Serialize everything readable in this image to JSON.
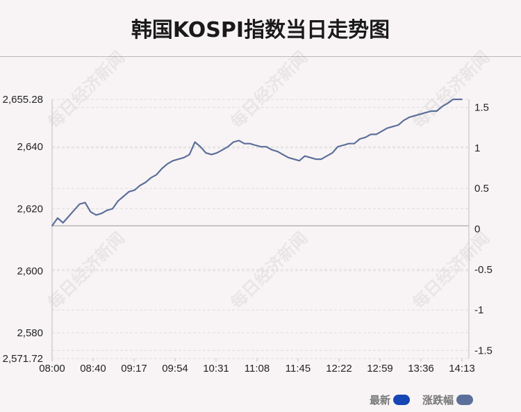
{
  "title": "韩国KOSPI指数当日走势图",
  "watermark": "每日经济新闻",
  "legend": {
    "latest_label": "最新",
    "latest_color": "#1646b4",
    "change_label": "涨跌幅",
    "change_color": "#5b6f9a"
  },
  "chart_data": {
    "type": "line",
    "x_tick_labels": [
      "08:00",
      "08:40",
      "09:17",
      "09:54",
      "10:31",
      "11:08",
      "11:45",
      "12:22",
      "12:59",
      "13:36",
      "14:13"
    ],
    "left_axis": {
      "ylim": [
        2571.72,
        2655.28
      ],
      "ticks": [
        2655.28,
        2640,
        2620,
        2600,
        2580,
        2571.72
      ],
      "tick_labels": [
        "2,655.28",
        "2,640",
        "2,620",
        "2,600",
        "2,580",
        "2,571.72"
      ]
    },
    "right_axis": {
      "ylim": [
        -1.6,
        1.6
      ],
      "ticks": [
        1.5,
        1,
        0.5,
        0,
        -0.5,
        -1,
        -1.5
      ],
      "tick_labels": [
        "1.5",
        "1",
        "0.5",
        "0",
        "-0.5",
        "-1",
        "-1.5"
      ]
    },
    "baseline": 2614.5,
    "line_color": "#5b6f9a",
    "series": [
      {
        "x": [
          "08:00",
          "08:05",
          "08:10",
          "08:15",
          "08:20",
          "08:25",
          "08:30",
          "08:35",
          "08:40",
          "08:45",
          "08:50",
          "08:55",
          "09:00",
          "09:05",
          "09:10",
          "09:15",
          "09:20",
          "09:25",
          "09:30",
          "09:35",
          "09:40",
          "09:45",
          "09:50",
          "09:55",
          "10:00",
          "10:05",
          "10:10",
          "10:15",
          "10:20",
          "10:25",
          "10:30",
          "10:35",
          "10:40",
          "10:45",
          "10:50",
          "10:55",
          "11:00",
          "11:05",
          "11:10",
          "11:15",
          "11:20",
          "11:25",
          "11:30",
          "11:35",
          "11:40",
          "11:45",
          "11:50",
          "11:55",
          "12:00",
          "12:05",
          "12:10",
          "12:15",
          "12:20",
          "12:25",
          "12:30",
          "12:35",
          "12:40",
          "12:45",
          "12:50",
          "12:55",
          "13:00",
          "13:05",
          "13:10",
          "13:15",
          "13:20",
          "13:25",
          "13:30",
          "13:35",
          "13:40",
          "13:45",
          "13:50",
          "13:55",
          "14:00",
          "14:05",
          "14:10",
          "14:13"
        ],
        "values": [
          2614.5,
          2617,
          2615.5,
          2617.5,
          2619.5,
          2621.5,
          2622,
          2619,
          2618,
          2618.5,
          2619.5,
          2620,
          2622.5,
          2624,
          2625.5,
          2626,
          2627.5,
          2628.5,
          2630,
          2631,
          2633,
          2634.5,
          2635.5,
          2636,
          2636.5,
          2637.5,
          2641.5,
          2640,
          2638,
          2637.5,
          2638,
          2639,
          2640,
          2641.5,
          2642,
          2641,
          2641,
          2640.5,
          2640,
          2640,
          2639,
          2638.5,
          2637.5,
          2636.5,
          2636,
          2635.5,
          2637,
          2636.5,
          2636,
          2636,
          2637,
          2638,
          2640,
          2640.5,
          2641,
          2641,
          2642.5,
          2643,
          2644,
          2644,
          2645,
          2646,
          2646.5,
          2647,
          2648.5,
          2649.5,
          2650,
          2650.5,
          2651,
          2651.5,
          2651.5,
          2653,
          2654,
          2655.28,
          2655.28,
          2655.28
        ]
      }
    ]
  }
}
